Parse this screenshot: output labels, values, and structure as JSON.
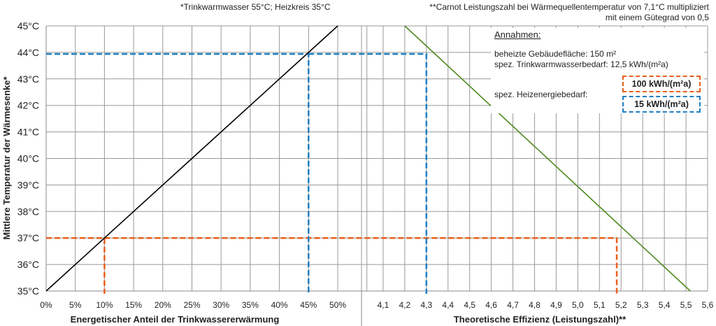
{
  "chart_data": [
    {
      "type": "line",
      "title": "",
      "xlabel": "Energetischer Anteil der Trinkwassererwärmung",
      "ylabel": "Mittlere Temperatur der Wärmesenke*",
      "xlim": [
        0,
        54
      ],
      "ylim": [
        35,
        45
      ],
      "x_ticks": [
        "0%",
        "5%",
        "10%",
        "15%",
        "20%",
        "25%",
        "30%",
        "35%",
        "40%",
        "45%",
        "50%"
      ],
      "y_ticks": [
        "35°C",
        "36°C",
        "37°C",
        "38°C",
        "39°C",
        "40°C",
        "41°C",
        "42°C",
        "43°C",
        "44°C",
        "45°C"
      ],
      "series": [
        {
          "name": "Anteil",
          "color": "#000000",
          "x": [
            0,
            50
          ],
          "y": [
            35,
            45
          ]
        }
      ],
      "guides": [
        {
          "name": "100 kWh/(m²a)",
          "color": "#e8601c",
          "x": 10,
          "y": 37
        },
        {
          "name": "15 kWh/(m²a)",
          "color": "#1f7fc4",
          "x": 45,
          "y": 43.94
        }
      ]
    },
    {
      "type": "line",
      "xlabel": "Theoretische Effizienz (Leistungszahl)**",
      "xlim": [
        4.0,
        5.6
      ],
      "ylim": [
        35,
        45
      ],
      "x_ticks": [
        "4,1",
        "4,2",
        "4,3",
        "4,4",
        "4,5",
        "4,6",
        "4,7",
        "4,8",
        "4,9",
        "5,0",
        "5,1",
        "5,2",
        "5,3",
        "5,4",
        "5,5",
        "5,6"
      ],
      "series": [
        {
          "name": "Leistungszahl",
          "color": "#4e8a1f",
          "x": [
            4.2,
            5.52
          ],
          "y": [
            45,
            35
          ]
        }
      ],
      "guides": [
        {
          "name": "100 kWh/(m²a)",
          "color": "#e8601c",
          "x": 5.18,
          "y": 37
        },
        {
          "name": "15 kWh/(m²a)",
          "color": "#1f7fc4",
          "x": 4.3,
          "y": 43.94
        }
      ]
    }
  ],
  "notes": {
    "left": "*Trinkwarmwasser 55°C; Heizkreis 35°C",
    "right1": "**Carnot Leistungszahl bei Wärmequellentemperatur von 7,1°C multipliziert",
    "right2": "mit einem Gütegrad von 0,5"
  },
  "annahmen": {
    "title": "Annahmen:",
    "line1": "beheizte Gebäudefläche: 150 m²",
    "line2": "spez. Trinkwarmwasserbedarf: 12,5 kWh/(m²a)",
    "line3": "spez. Heizenergiebedarf:",
    "box1": "100 kWh/(m²a)",
    "box2": "15 kWh/(m²a)"
  }
}
